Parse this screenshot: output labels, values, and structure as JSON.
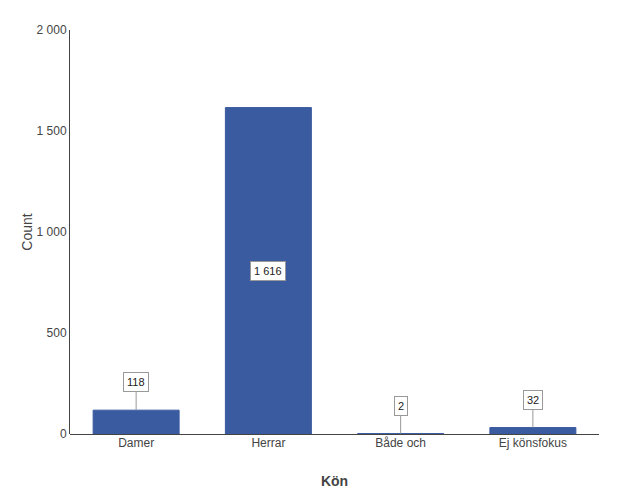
{
  "chart_data": {
    "type": "bar",
    "categories": [
      "Damer",
      "Herrar",
      "Både och",
      "Ej könsfokus"
    ],
    "values": [
      118,
      1616,
      2,
      32
    ],
    "value_labels": [
      "118",
      "1 616",
      "2",
      "32"
    ],
    "data_labels": true,
    "color": "#3A5BA0",
    "xlabel": "Kön",
    "ylabel": "Count",
    "ylim": [
      0,
      2000
    ],
    "yticks": [
      0,
      500,
      {
        "value": 1000,
        "label": "1 000"
      },
      {
        "value": 1500,
        "label": "1 500"
      },
      {
        "value": 2000,
        "label": "2 000"
      }
    ],
    "grid": false
  }
}
